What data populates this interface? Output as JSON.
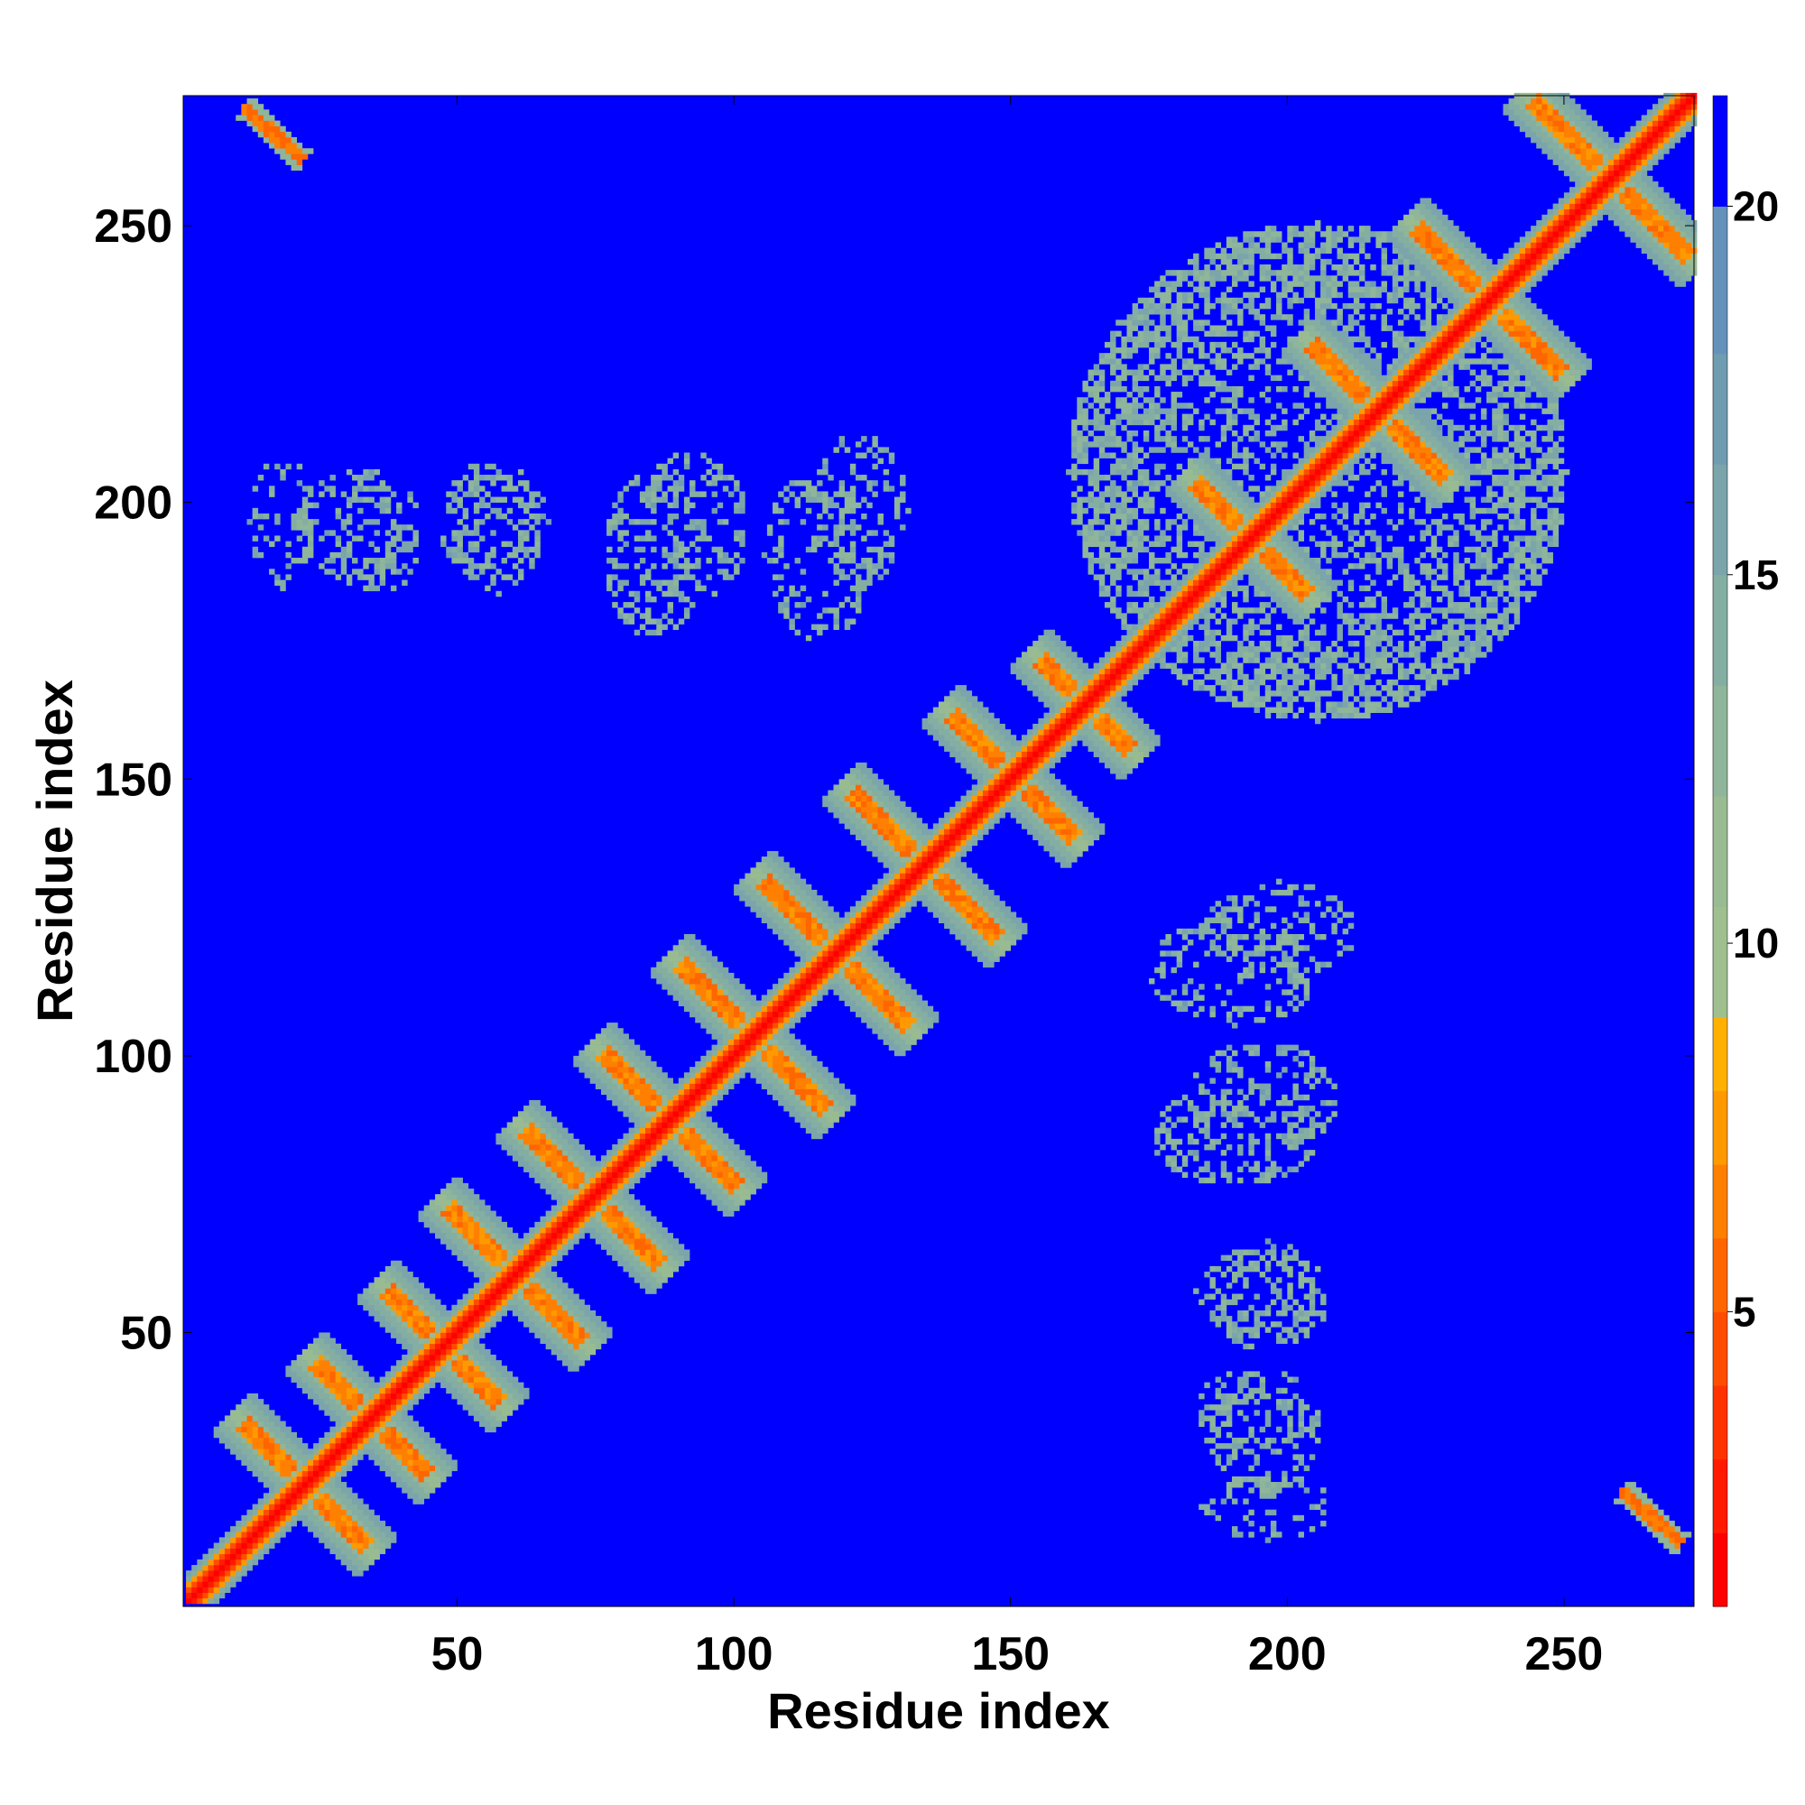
{
  "chart_data": {
    "type": "heatmap",
    "title": "",
    "xlabel": "Residue index",
    "ylabel": "Residue index",
    "xlim": [
      1,
      273
    ],
    "ylim": [
      1,
      273
    ],
    "xticks": [
      50,
      100,
      150,
      200,
      250
    ],
    "yticks": [
      50,
      100,
      150,
      200,
      250
    ],
    "colorbar": {
      "ticks": [
        5,
        10,
        15,
        20
      ],
      "range": [
        1,
        21.5
      ],
      "levels": [
        {
          "min": 1.0,
          "max": 2.0,
          "color": "#ff0000"
        },
        {
          "min": 2.0,
          "max": 3.0,
          "color": "#ff1a00"
        },
        {
          "min": 3.0,
          "max": 4.0,
          "color": "#ff3300"
        },
        {
          "min": 4.0,
          "max": 5.0,
          "color": "#ff4d00"
        },
        {
          "min": 5.0,
          "max": 6.0,
          "color": "#ff6600"
        },
        {
          "min": 6.0,
          "max": 7.0,
          "color": "#ff8000"
        },
        {
          "min": 7.0,
          "max": 8.0,
          "color": "#ff9900"
        },
        {
          "min": 8.0,
          "max": 9.0,
          "color": "#ffb000"
        },
        {
          "min": 9.0,
          "max": 10.5,
          "color": "#9fbf8f"
        },
        {
          "min": 10.5,
          "max": 12.0,
          "color": "#99bb92"
        },
        {
          "min": 12.0,
          "max": 13.5,
          "color": "#8fb59a"
        },
        {
          "min": 13.5,
          "max": 15.0,
          "color": "#85aea2"
        },
        {
          "min": 15.0,
          "max": 16.5,
          "color": "#7ba5aa"
        },
        {
          "min": 16.5,
          "max": 18.0,
          "color": "#709cb2"
        },
        {
          "min": 18.0,
          "max": 20.0,
          "color": "#6592bb"
        },
        {
          "min": 20.0,
          "max": 21.5,
          "color": "#0000ff"
        }
      ]
    },
    "background_value": 21,
    "diagonal_band_width": 3,
    "antiparallel_contacts": [
      {
        "cx": 22,
        "cy": 22,
        "half": 11
      },
      {
        "cx": 34,
        "cy": 34,
        "half": 10
      },
      {
        "cx": 47,
        "cy": 47,
        "half": 10
      },
      {
        "cx": 60,
        "cy": 60,
        "half": 12
      },
      {
        "cx": 74,
        "cy": 74,
        "half": 12
      },
      {
        "cx": 88,
        "cy": 88,
        "half": 12
      },
      {
        "cx": 103,
        "cy": 103,
        "half": 13
      },
      {
        "cx": 118,
        "cy": 118,
        "half": 13
      },
      {
        "cx": 134,
        "cy": 134,
        "half": 13
      },
      {
        "cx": 150,
        "cy": 150,
        "half": 11
      },
      {
        "cx": 163,
        "cy": 163,
        "half": 8
      },
      {
        "cx": 193,
        "cy": 193,
        "half": 10
      },
      {
        "cx": 216,
        "cy": 216,
        "half": 12
      },
      {
        "cx": 236,
        "cy": 236,
        "half": 13
      },
      {
        "cx": 258,
        "cy": 258,
        "half": 14
      }
    ],
    "corner_contacts": [
      {
        "x_start": 11,
        "y_start": 271,
        "x_end": 22,
        "y_end": 261
      },
      {
        "x_start": 260,
        "y_start": 21,
        "x_end": 271,
        "y_end": 11
      }
    ],
    "blob_regions": [
      {
        "cx": 18,
        "cy": 196,
        "rx": 6,
        "ry": 12
      },
      {
        "cx": 35,
        "cy": 194,
        "rx": 8,
        "ry": 12
      },
      {
        "cx": 57,
        "cy": 194,
        "rx": 8,
        "ry": 11
      },
      {
        "cx": 85,
        "cy": 190,
        "rx": 9,
        "ry": 15
      },
      {
        "cx": 115,
        "cy": 190,
        "rx": 10,
        "ry": 16
      },
      {
        "cx": 198,
        "cy": 122,
        "rx": 14,
        "ry": 9
      },
      {
        "cx": 195,
        "cy": 92,
        "rx": 14,
        "ry": 10
      },
      {
        "cx": 196,
        "cy": 56,
        "rx": 11,
        "ry": 10
      },
      {
        "cx": 195,
        "cy": 30,
        "rx": 10,
        "ry": 10
      },
      {
        "cx": 205,
        "cy": 205,
        "rx": 45,
        "ry": 45
      }
    ]
  }
}
